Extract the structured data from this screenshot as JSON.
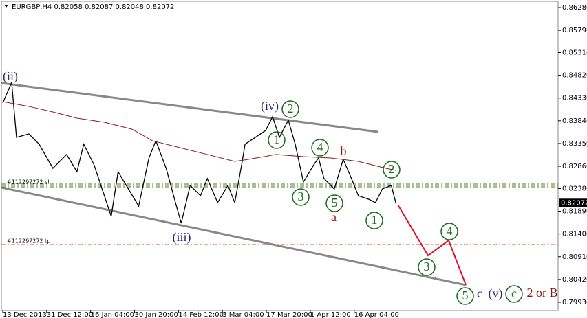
{
  "chart_data": {
    "type": "line",
    "title": "EURGBP,H4 0.82058 0.82087 0.82048 0.82072",
    "current_price": {
      "value": 0.82072,
      "label": "0.82072"
    },
    "order_labels": [
      "#112297272 sl",
      "#112297272 tp"
    ],
    "series": [
      {
        "color": "#000000",
        "x": [
          2,
          15,
          22,
          40,
          55,
          75,
          95,
          110,
          120,
          135,
          145,
          160,
          170,
          185,
          200,
          215,
          225,
          240,
          255,
          262,
          275,
          290,
          300,
          315,
          330,
          340,
          350,
          355,
          370,
          385,
          395,
          405,
          418,
          428,
          440,
          455,
          462,
          470,
          485,
          498,
          510,
          520,
          535,
          545,
          555,
          568,
          575
        ],
        "values": [
          0.84223,
          0.84667,
          0.83483,
          0.83557,
          0.83335,
          0.82816,
          0.83113,
          0.82742,
          0.83335,
          0.8289,
          0.82447,
          0.8178,
          0.82742,
          0.82372,
          0.82002,
          0.83038,
          0.83409,
          0.82816,
          0.82002,
          0.81632,
          0.82447,
          0.82224,
          0.82595,
          0.82076,
          0.82447,
          0.82076,
          0.8289,
          0.83335,
          0.83483,
          0.83631,
          0.83927,
          0.83483,
          0.83853,
          0.83335,
          0.82521,
          0.8289,
          0.83038,
          0.82595,
          0.82372,
          0.83009,
          0.82595,
          0.82224,
          0.8215,
          0.82076,
          0.82372,
          0.82447,
          0.82047
        ]
      },
      {
        "color": "#8b1a1a",
        "x": [
          2,
          40,
          75,
          110,
          150,
          190,
          220,
          260,
          300,
          340,
          360,
          400,
          440,
          480,
          520,
          560,
          575
        ],
        "values": [
          0.84252,
          0.84149,
          0.8403,
          0.83897,
          0.83808,
          0.8366,
          0.83409,
          0.8326,
          0.83113,
          0.82964,
          0.83009,
          0.83113,
          0.83068,
          0.83038,
          0.82964,
          0.82816,
          0.82772
        ]
      }
    ],
    "xlim": [
      0,
      811
    ],
    "ylim": [
      0.79752,
      0.86413
    ],
    "xticks": [
      {
        "value": 2,
        "label": "13 Dec 2013"
      },
      {
        "value": 66,
        "label": "31 Dec 12:00"
      },
      {
        "value": 130,
        "label": "16 Jan 04:00"
      },
      {
        "value": 194,
        "label": "30 Jan 20:00"
      },
      {
        "value": 258,
        "label": "14 Feb 12:00"
      },
      {
        "value": 322,
        "label": "3 Mar 04:00"
      },
      {
        "value": 386,
        "label": "17 Mar 20:00"
      },
      {
        "value": 450,
        "label": "1 Apr 12:00"
      },
      {
        "value": 514,
        "label": "16 Apr 04:00"
      }
    ],
    "yticks": [
      {
        "value": 0.8628,
        "label": "0.86280"
      },
      {
        "value": 0.8579,
        "label": "0.85790"
      },
      {
        "value": 0.8531,
        "label": "0.85310"
      },
      {
        "value": 0.8482,
        "label": "0.84820"
      },
      {
        "value": 0.8433,
        "label": "0.84330"
      },
      {
        "value": 0.8384,
        "label": "0.83840"
      },
      {
        "value": 0.8335,
        "label": "0.83350"
      },
      {
        "value": 0.8286,
        "label": "0.82860"
      },
      {
        "value": 0.8238,
        "label": "0.82380"
      },
      {
        "value": 0.8189,
        "label": "0.81890"
      },
      {
        "value": 0.814,
        "label": "0.81400"
      },
      {
        "value": 0.8091,
        "label": "0.80910"
      },
      {
        "value": 0.8042,
        "label": "0.80420"
      },
      {
        "value": 0.7993,
        "label": "0.79930"
      }
    ],
    "annotations": [
      "(ii)",
      "(iv)",
      "2",
      "1",
      "4",
      "b",
      "2",
      "3",
      "5",
      "a",
      "1",
      "(iii)",
      "4",
      "3",
      "5",
      "c",
      "(v)",
      "c",
      "2 or B"
    ]
  }
}
